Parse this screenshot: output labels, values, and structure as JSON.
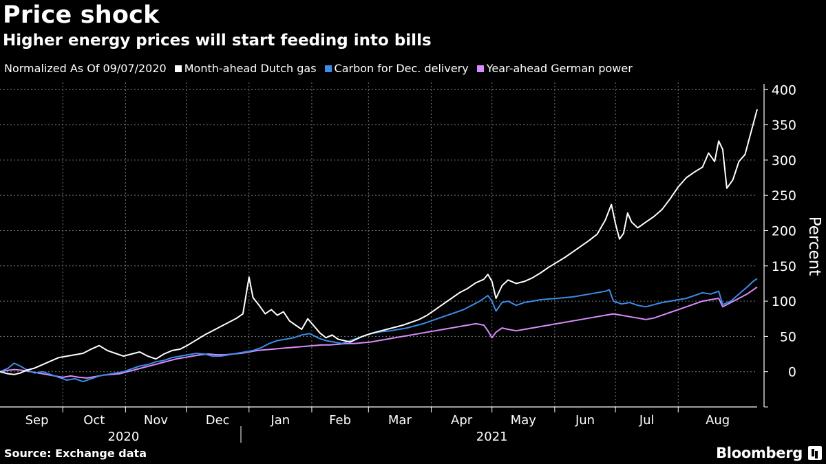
{
  "chart_data": {
    "type": "line",
    "title": "Price shock",
    "subtitle": "Higher energy prices will start feeding into bills",
    "legend_label": "Normalized As Of 09/07/2020",
    "ylabel": "Percent",
    "xlabel": "",
    "ylim": [
      -50,
      410
    ],
    "yticks": [
      0,
      50,
      100,
      150,
      200,
      250,
      300,
      350,
      400
    ],
    "grid": true,
    "axis_position": "right",
    "month_ticks": [
      {
        "label": "Sep",
        "day": 0
      },
      {
        "label": "Oct",
        "day": 24
      },
      {
        "label": "Nov",
        "day": 55
      },
      {
        "label": "Dec",
        "day": 85
      },
      {
        "label": "Jan",
        "day": 116
      },
      {
        "label": "Feb",
        "day": 147
      },
      {
        "label": "Mar",
        "day": 175
      },
      {
        "label": "Apr",
        "day": 206
      },
      {
        "label": "May",
        "day": 236
      },
      {
        "label": "Jun",
        "day": 267
      },
      {
        "label": "Jul",
        "day": 297
      },
      {
        "label": "Aug",
        "day": 328
      }
    ],
    "year_labels": [
      {
        "label": "2020",
        "day": 54
      },
      {
        "label": "2021",
        "day": 236
      }
    ],
    "year_divider_day": 112,
    "x_range": [
      -7,
      367
    ],
    "series": [
      {
        "name": "Month-ahead Dutch gas",
        "color": "#ffffff",
        "points": [
          [
            -7,
            0
          ],
          [
            -3,
            -3
          ],
          [
            0,
            -4
          ],
          [
            3,
            -2
          ],
          [
            6,
            2
          ],
          [
            10,
            5
          ],
          [
            14,
            10
          ],
          [
            18,
            15
          ],
          [
            22,
            20
          ],
          [
            26,
            22
          ],
          [
            30,
            24
          ],
          [
            34,
            26
          ],
          [
            38,
            32
          ],
          [
            42,
            37
          ],
          [
            46,
            30
          ],
          [
            50,
            26
          ],
          [
            54,
            22
          ],
          [
            58,
            25
          ],
          [
            62,
            28
          ],
          [
            66,
            22
          ],
          [
            70,
            18
          ],
          [
            74,
            25
          ],
          [
            78,
            30
          ],
          [
            82,
            32
          ],
          [
            86,
            38
          ],
          [
            90,
            45
          ],
          [
            94,
            52
          ],
          [
            98,
            58
          ],
          [
            102,
            64
          ],
          [
            106,
            70
          ],
          [
            110,
            76
          ],
          [
            113,
            82
          ],
          [
            116,
            134
          ],
          [
            118,
            105
          ],
          [
            121,
            94
          ],
          [
            124,
            82
          ],
          [
            127,
            88
          ],
          [
            130,
            80
          ],
          [
            133,
            85
          ],
          [
            136,
            72
          ],
          [
            139,
            66
          ],
          [
            142,
            60
          ],
          [
            145,
            75
          ],
          [
            148,
            65
          ],
          [
            151,
            55
          ],
          [
            154,
            48
          ],
          [
            157,
            52
          ],
          [
            160,
            46
          ],
          [
            163,
            44
          ],
          [
            166,
            42
          ],
          [
            169,
            46
          ],
          [
            172,
            50
          ],
          [
            176,
            54
          ],
          [
            180,
            57
          ],
          [
            184,
            60
          ],
          [
            188,
            63
          ],
          [
            192,
            66
          ],
          [
            196,
            70
          ],
          [
            200,
            74
          ],
          [
            204,
            80
          ],
          [
            208,
            88
          ],
          [
            212,
            96
          ],
          [
            216,
            104
          ],
          [
            220,
            112
          ],
          [
            224,
            118
          ],
          [
            228,
            126
          ],
          [
            232,
            131
          ],
          [
            234,
            138
          ],
          [
            236,
            128
          ],
          [
            238,
            104
          ],
          [
            241,
            122
          ],
          [
            244,
            130
          ],
          [
            248,
            125
          ],
          [
            252,
            128
          ],
          [
            256,
            133
          ],
          [
            260,
            140
          ],
          [
            264,
            148
          ],
          [
            268,
            155
          ],
          [
            272,
            162
          ],
          [
            276,
            170
          ],
          [
            280,
            178
          ],
          [
            284,
            186
          ],
          [
            288,
            195
          ],
          [
            292,
            215
          ],
          [
            295,
            237
          ],
          [
            297,
            210
          ],
          [
            299,
            188
          ],
          [
            301,
            196
          ],
          [
            303,
            225
          ],
          [
            305,
            212
          ],
          [
            308,
            204
          ],
          [
            312,
            212
          ],
          [
            316,
            220
          ],
          [
            320,
            230
          ],
          [
            324,
            245
          ],
          [
            328,
            262
          ],
          [
            332,
            275
          ],
          [
            336,
            283
          ],
          [
            340,
            290
          ],
          [
            343,
            310
          ],
          [
            346,
            298
          ],
          [
            348,
            327
          ],
          [
            350,
            315
          ],
          [
            352,
            260
          ],
          [
            355,
            272
          ],
          [
            358,
            298
          ],
          [
            361,
            308
          ],
          [
            364,
            340
          ],
          [
            367,
            372
          ]
        ]
      },
      {
        "name": "Carbon for Dec. delivery",
        "color": "#3b8de8",
        "points": [
          [
            -7,
            0
          ],
          [
            -3,
            5
          ],
          [
            0,
            12
          ],
          [
            3,
            8
          ],
          [
            6,
            3
          ],
          [
            10,
            -2
          ],
          [
            14,
            0
          ],
          [
            18,
            -4
          ],
          [
            22,
            -8
          ],
          [
            26,
            -12
          ],
          [
            30,
            -10
          ],
          [
            34,
            -14
          ],
          [
            38,
            -10
          ],
          [
            42,
            -6
          ],
          [
            46,
            -4
          ],
          [
            50,
            -2
          ],
          [
            54,
            0
          ],
          [
            58,
            4
          ],
          [
            62,
            8
          ],
          [
            66,
            10
          ],
          [
            70,
            14
          ],
          [
            74,
            16
          ],
          [
            78,
            20
          ],
          [
            82,
            22
          ],
          [
            86,
            24
          ],
          [
            90,
            26
          ],
          [
            94,
            25
          ],
          [
            98,
            22
          ],
          [
            102,
            22
          ],
          [
            106,
            24
          ],
          [
            110,
            26
          ],
          [
            114,
            28
          ],
          [
            118,
            30
          ],
          [
            122,
            34
          ],
          [
            126,
            40
          ],
          [
            130,
            44
          ],
          [
            134,
            46
          ],
          [
            138,
            48
          ],
          [
            142,
            52
          ],
          [
            146,
            54
          ],
          [
            150,
            48
          ],
          [
            154,
            44
          ],
          [
            158,
            42
          ],
          [
            162,
            40
          ],
          [
            166,
            44
          ],
          [
            170,
            48
          ],
          [
            174,
            52
          ],
          [
            178,
            55
          ],
          [
            182,
            57
          ],
          [
            186,
            58
          ],
          [
            190,
            60
          ],
          [
            194,
            62
          ],
          [
            198,
            65
          ],
          [
            202,
            68
          ],
          [
            206,
            72
          ],
          [
            210,
            76
          ],
          [
            214,
            80
          ],
          [
            218,
            84
          ],
          [
            222,
            88
          ],
          [
            226,
            94
          ],
          [
            230,
            100
          ],
          [
            234,
            108
          ],
          [
            236,
            100
          ],
          [
            238,
            86
          ],
          [
            241,
            98
          ],
          [
            244,
            100
          ],
          [
            248,
            94
          ],
          [
            252,
            98
          ],
          [
            256,
            100
          ],
          [
            260,
            102
          ],
          [
            264,
            103
          ],
          [
            268,
            104
          ],
          [
            272,
            105
          ],
          [
            276,
            106
          ],
          [
            280,
            108
          ],
          [
            284,
            110
          ],
          [
            288,
            112
          ],
          [
            292,
            114
          ],
          [
            294,
            116
          ],
          [
            296,
            100
          ],
          [
            300,
            96
          ],
          [
            304,
            98
          ],
          [
            308,
            94
          ],
          [
            312,
            92
          ],
          [
            316,
            95
          ],
          [
            320,
            98
          ],
          [
            324,
            100
          ],
          [
            328,
            102
          ],
          [
            332,
            104
          ],
          [
            336,
            108
          ],
          [
            340,
            112
          ],
          [
            344,
            110
          ],
          [
            348,
            114
          ],
          [
            350,
            95
          ],
          [
            354,
            100
          ],
          [
            358,
            110
          ],
          [
            362,
            120
          ],
          [
            365,
            128
          ],
          [
            367,
            132
          ]
        ]
      },
      {
        "name": "Year-ahead German power",
        "color": "#d98cff",
        "points": [
          [
            -7,
            0
          ],
          [
            -3,
            2
          ],
          [
            0,
            3
          ],
          [
            4,
            2
          ],
          [
            8,
            0
          ],
          [
            12,
            -2
          ],
          [
            16,
            -4
          ],
          [
            20,
            -6
          ],
          [
            24,
            -8
          ],
          [
            28,
            -6
          ],
          [
            32,
            -8
          ],
          [
            36,
            -9
          ],
          [
            40,
            -7
          ],
          [
            44,
            -5
          ],
          [
            48,
            -4
          ],
          [
            52,
            -3
          ],
          [
            56,
            0
          ],
          [
            60,
            3
          ],
          [
            64,
            6
          ],
          [
            68,
            9
          ],
          [
            72,
            12
          ],
          [
            76,
            15
          ],
          [
            80,
            18
          ],
          [
            84,
            20
          ],
          [
            88,
            22
          ],
          [
            92,
            24
          ],
          [
            96,
            25
          ],
          [
            100,
            24
          ],
          [
            104,
            24
          ],
          [
            108,
            25
          ],
          [
            112,
            26
          ],
          [
            116,
            28
          ],
          [
            120,
            30
          ],
          [
            124,
            31
          ],
          [
            128,
            32
          ],
          [
            132,
            33
          ],
          [
            136,
            34
          ],
          [
            140,
            35
          ],
          [
            144,
            36
          ],
          [
            148,
            37
          ],
          [
            152,
            38
          ],
          [
            156,
            38
          ],
          [
            160,
            39
          ],
          [
            164,
            40
          ],
          [
            168,
            40
          ],
          [
            172,
            41
          ],
          [
            176,
            42
          ],
          [
            180,
            44
          ],
          [
            184,
            46
          ],
          [
            188,
            48
          ],
          [
            192,
            50
          ],
          [
            196,
            52
          ],
          [
            200,
            54
          ],
          [
            204,
            56
          ],
          [
            208,
            58
          ],
          [
            212,
            60
          ],
          [
            216,
            62
          ],
          [
            220,
            64
          ],
          [
            224,
            66
          ],
          [
            228,
            68
          ],
          [
            232,
            66
          ],
          [
            234,
            58
          ],
          [
            236,
            48
          ],
          [
            238,
            56
          ],
          [
            241,
            62
          ],
          [
            244,
            60
          ],
          [
            248,
            58
          ],
          [
            252,
            60
          ],
          [
            256,
            62
          ],
          [
            260,
            64
          ],
          [
            264,
            66
          ],
          [
            268,
            68
          ],
          [
            272,
            70
          ],
          [
            276,
            72
          ],
          [
            280,
            74
          ],
          [
            284,
            76
          ],
          [
            288,
            78
          ],
          [
            292,
            80
          ],
          [
            296,
            82
          ],
          [
            300,
            80
          ],
          [
            304,
            78
          ],
          [
            308,
            76
          ],
          [
            312,
            74
          ],
          [
            316,
            76
          ],
          [
            320,
            80
          ],
          [
            324,
            84
          ],
          [
            328,
            88
          ],
          [
            332,
            92
          ],
          [
            336,
            96
          ],
          [
            340,
            100
          ],
          [
            344,
            102
          ],
          [
            348,
            104
          ],
          [
            350,
            92
          ],
          [
            354,
            98
          ],
          [
            358,
            104
          ],
          [
            362,
            110
          ],
          [
            365,
            116
          ],
          [
            367,
            120
          ]
        ]
      }
    ]
  },
  "footer": {
    "source": "Source: Exchange data",
    "brand": "Bloomberg"
  }
}
